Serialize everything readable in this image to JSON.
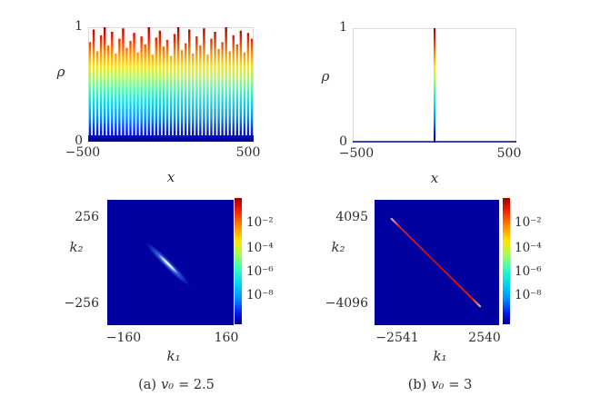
{
  "colors": {
    "jet_stops": [
      {
        "o": 0.0,
        "c": "#000088"
      },
      {
        "o": 0.08,
        "c": "#0014e6"
      },
      {
        "o": 0.2,
        "c": "#008cff"
      },
      {
        "o": 0.33,
        "c": "#00dcea"
      },
      {
        "o": 0.45,
        "c": "#3cffb4"
      },
      {
        "o": 0.55,
        "c": "#a0ff5a"
      },
      {
        "o": 0.66,
        "c": "#ffe600"
      },
      {
        "o": 0.78,
        "c": "#ff8800"
      },
      {
        "o": 0.9,
        "c": "#f32000"
      },
      {
        "o": 1.0,
        "c": "#9e0000"
      }
    ],
    "heatmap_bg": "#0101a0",
    "baseline": "#000a96",
    "plot_border": "#dadae4",
    "text": "#2f2f2f",
    "streak_core": "#ffffff",
    "streak_glow": "#3c78e6",
    "redline": "#bd0f0f",
    "redline_ends": "#edb6cf"
  },
  "captions": {
    "a": {
      "prefix": "(a)",
      "variable": "v₀",
      "value": "= 2.5"
    },
    "b": {
      "prefix": "(b)",
      "variable": "v₀",
      "value": "= 3"
    }
  },
  "chart_data": [
    {
      "id": "density-profile-a",
      "type": "line",
      "xlabel": "x",
      "ylabel": "ρ",
      "xlim": [
        -500,
        500
      ],
      "ylim": [
        0,
        1
      ],
      "xtick_labels": [
        "−500",
        "500"
      ],
      "ytick_labels": [
        "0",
        "1"
      ],
      "colormap": "jet, colored by ρ value (blue=0, red=1)",
      "n_spikes": 45,
      "series": [
        {
          "name": "spike peak heights, uniformly spaced over x∈[−500,500]",
          "values": [
            0.87,
            0.98,
            0.79,
            0.93,
            1.0,
            0.84,
            0.96,
            0.77,
            0.9,
            0.99,
            0.82,
            0.88,
            0.95,
            0.78,
            0.92,
            0.85,
            1.0,
            0.76,
            0.91,
            0.97,
            0.83,
            0.89,
            0.75,
            0.94,
            1.0,
            0.8,
            0.86,
            0.98,
            0.77,
            0.92,
            0.84,
            0.99,
            0.76,
            0.9,
            0.96,
            0.81,
            0.87,
            1.0,
            0.79,
            0.93,
            0.85,
            0.97,
            0.78,
            0.95,
            0.9
          ]
        }
      ]
    },
    {
      "id": "density-profile-b",
      "type": "line",
      "xlabel": "x",
      "ylabel": "ρ",
      "xlim": [
        -500,
        500
      ],
      "ylim": [
        0,
        1
      ],
      "xtick_labels": [
        "−500",
        "500"
      ],
      "ytick_labels": [
        "0",
        "1"
      ],
      "colormap": "jet, colored by ρ value (blue=0, red=1)",
      "series": [
        {
          "name": "single central spike",
          "x": 0,
          "peak": 1.0,
          "baseline": 0
        }
      ]
    },
    {
      "id": "momentum-correlation-a",
      "type": "heatmap",
      "xlabel": "k₁",
      "ylabel": "k₂",
      "xtick_labels": [
        "−160",
        "160"
      ],
      "ytick_labels": [
        "256",
        "−256"
      ],
      "scale": "log colorbar",
      "colorbar_tick_labels": [
        "10⁻²",
        "10⁻⁴",
        "10⁻⁶",
        "10⁻⁸"
      ],
      "feature": {
        "shape": "short anti-diagonal streak, white core with cyan-blue glow",
        "x1": 0.34,
        "y1": 0.37,
        "x2": 0.62,
        "y2": 0.65
      }
    },
    {
      "id": "momentum-correlation-b",
      "type": "heatmap",
      "xlabel": "k₁",
      "ylabel": "k₂",
      "xtick_labels": [
        "−2541",
        "2540"
      ],
      "ytick_labels": [
        "4095",
        "−4096"
      ],
      "scale": "log colorbar",
      "colorbar_tick_labels": [
        "10⁻²",
        "10⁻⁴",
        "10⁻⁶",
        "10⁻⁸"
      ],
      "feature": {
        "shape": "long thin anti-diagonal red line, pale pink at the ends",
        "x1": 0.135,
        "y1": 0.148,
        "x2": 0.855,
        "y2": 0.855
      }
    }
  ]
}
